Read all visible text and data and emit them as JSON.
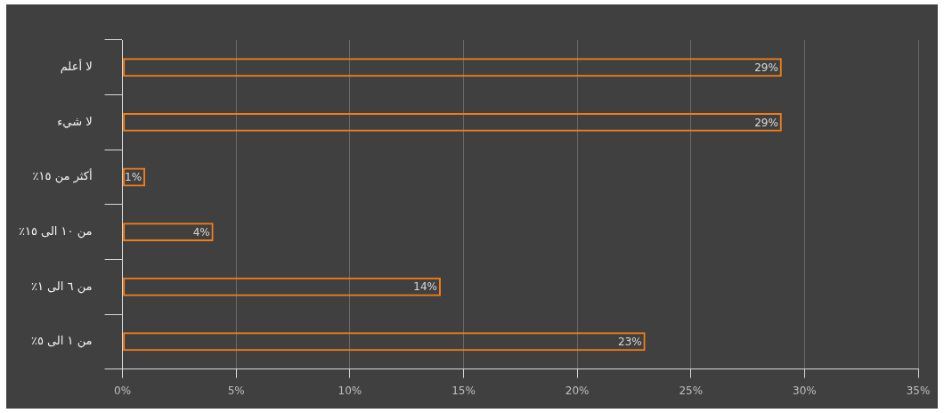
{
  "chart_data": {
    "type": "bar",
    "orientation": "horizontal",
    "categories": [
      "لا أعلم",
      "لا شيء",
      "أكثر من ١٥٪",
      "من ١٠ الى ١٥٪",
      "من ٦ الى ١٪",
      "من ١ الى ٥٪"
    ],
    "values": [
      29,
      29,
      1,
      4,
      14,
      23
    ],
    "value_labels": [
      "29%",
      "29%",
      "1%",
      "4%",
      "14%",
      "23%"
    ],
    "color": "#f07d1a",
    "xlim": [
      0,
      35
    ],
    "xticks": [
      {
        "value": 0,
        "label": "0%"
      },
      {
        "value": 5,
        "label": "5%"
      },
      {
        "value": 10,
        "label": "10%"
      },
      {
        "value": 15,
        "label": "15%"
      },
      {
        "value": 20,
        "label": "20%"
      },
      {
        "value": 25,
        "label": "25%"
      },
      {
        "value": 30,
        "label": "30%"
      },
      {
        "value": 35,
        "label": "35%"
      }
    ],
    "grid": "x",
    "legend": false
  }
}
